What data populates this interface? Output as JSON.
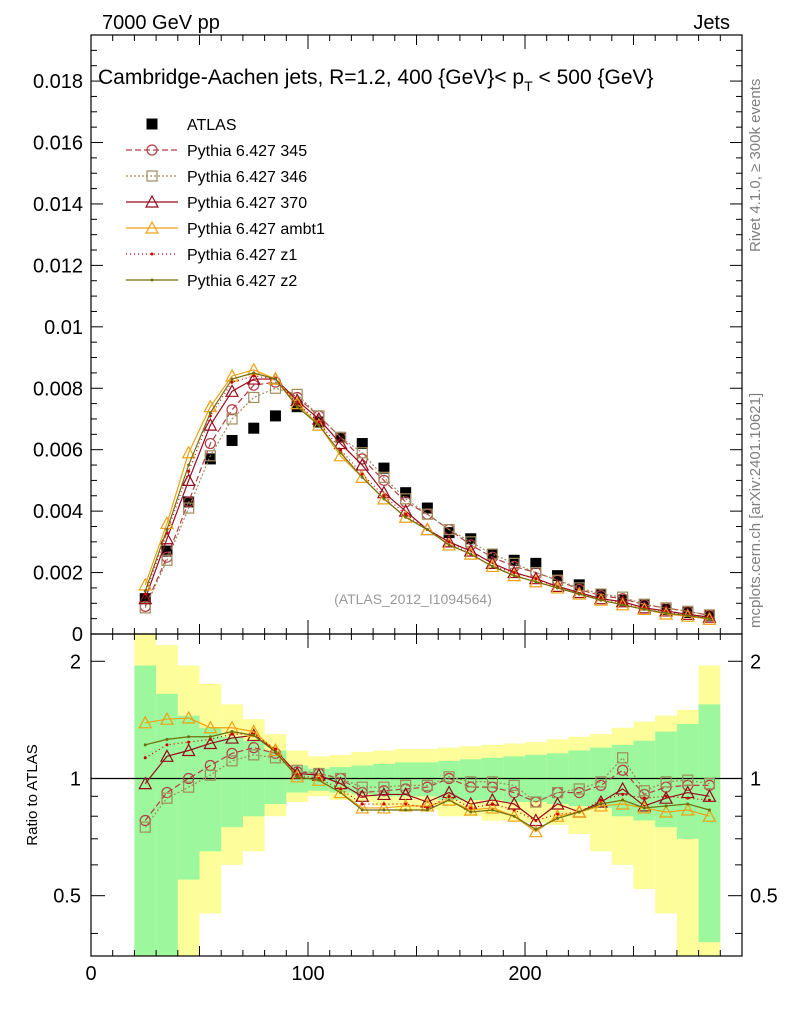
{
  "header": {
    "left": "7000 GeV pp",
    "right": "Jets"
  },
  "side_labels": {
    "rivet": "Rivet 4.1.0, ≥ 300k events",
    "mcplots": "mcplots.cern.ch [arXiv:2401.10621]"
  },
  "watermark": "(ATLAS_2012_I1094564)",
  "colors": {
    "data": "#000000",
    "p345": "#b43c46",
    "p346": "#a08c5a",
    "p370": "#960a1e",
    "ambt1": "#f0a014",
    "z1": "#c80000",
    "z2": "#6e6e0a",
    "band_inner": "#9df89d",
    "band_outer": "#fdfd99"
  },
  "chart_data": [
    {
      "type": "line",
      "title": "Cambridge-Aachen jets, R=1.2, 400 {GeV}< p_T < 500 {GeV}",
      "title_main": "Cambridge-Aachen jets, R=1.2, 400 {GeV}< p",
      "title_sub": "T",
      "title_end": " < 500 {GeV}",
      "xlim": [
        0,
        300
      ],
      "ylim": [
        0,
        0.0195
      ],
      "yticks": [
        "0",
        "0.002",
        "0.004",
        "0.006",
        "0.008",
        "0.01",
        "0.012",
        "0.014",
        "0.016",
        "0.018"
      ],
      "x": [
        25,
        35,
        45,
        55,
        65,
        75,
        85,
        95,
        105,
        115,
        125,
        135,
        145,
        155,
        165,
        175,
        185,
        195,
        205,
        215,
        225,
        235,
        245,
        255,
        265,
        275,
        285
      ],
      "series": [
        {
          "name": "ATLAS",
          "key": "data",
          "marker": "square",
          "dash": "",
          "values": [
            0.00115,
            0.0027,
            0.0043,
            0.0057,
            0.0063,
            0.0067,
            0.0071,
            0.0074,
            0.0069,
            0.0064,
            0.0062,
            0.0054,
            0.0046,
            0.0041,
            0.0033,
            0.0031,
            0.0026,
            0.0024,
            0.0023,
            0.0019,
            0.0016,
            0.0013,
            0.0011,
            0.00095,
            0.0008,
            0.0007,
            0.0006
          ]
        },
        {
          "name": "Pythia 6.427 345",
          "key": "p345",
          "marker": "circle",
          "dash": "6,3",
          "values": [
            0.0009,
            0.0025,
            0.0043,
            0.0062,
            0.0073,
            0.0081,
            0.0082,
            0.0077,
            0.0071,
            0.0064,
            0.0057,
            0.005,
            0.0043,
            0.0039,
            0.0034,
            0.0029,
            0.0025,
            0.0022,
            0.002,
            0.00175,
            0.00145,
            0.00125,
            0.00115,
            0.00095,
            0.00085,
            0.00073,
            0.00061
          ]
        },
        {
          "name": "Pythia 6.427 346",
          "key": "p346",
          "marker": "square-open",
          "dash": "2,2",
          "values": [
            0.00085,
            0.0024,
            0.0041,
            0.0058,
            0.007,
            0.0077,
            0.008,
            0.0078,
            0.0071,
            0.0064,
            0.0059,
            0.0051,
            0.0044,
            0.0039,
            0.0034,
            0.003,
            0.0026,
            0.0023,
            0.002,
            0.00175,
            0.0015,
            0.0013,
            0.0012,
            0.00097,
            0.00085,
            0.00074,
            0.00062
          ]
        },
        {
          "name": "Pythia 6.427 370",
          "key": "p370",
          "marker": "triangle",
          "dash": "",
          "values": [
            0.00115,
            0.0031,
            0.005,
            0.0068,
            0.0079,
            0.0083,
            0.0083,
            0.0076,
            0.007,
            0.0062,
            0.0055,
            0.0046,
            0.004,
            0.0034,
            0.003,
            0.0027,
            0.0023,
            0.002,
            0.0018,
            0.00155,
            0.00135,
            0.00115,
            0.00105,
            0.00085,
            0.00075,
            0.00064,
            0.00055
          ]
        },
        {
          "name": "Pythia 6.427 ambt1",
          "key": "ambt1",
          "marker": "triangle",
          "dash": "",
          "values": [
            0.0016,
            0.0036,
            0.0059,
            0.0074,
            0.0084,
            0.0086,
            0.0083,
            0.0075,
            0.0068,
            0.0058,
            0.0051,
            0.0044,
            0.0038,
            0.0034,
            0.0029,
            0.0026,
            0.0022,
            0.0019,
            0.0017,
            0.0015,
            0.0013,
            0.0011,
            0.00095,
            0.0008,
            0.00065,
            0.00058,
            0.00048
          ]
        },
        {
          "name": "Pythia 6.427 z1",
          "key": "z1",
          "marker": "dot",
          "dash": "1,3",
          "values": [
            0.0013,
            0.0033,
            0.0053,
            0.0071,
            0.0082,
            0.0084,
            0.0083,
            0.0075,
            0.0069,
            0.006,
            0.0052,
            0.0045,
            0.0039,
            0.0034,
            0.003,
            0.0026,
            0.0022,
            0.002,
            0.0018,
            0.0015,
            0.0013,
            0.00115,
            0.001,
            0.00085,
            0.00072,
            0.00062,
            0.00053
          ]
        },
        {
          "name": "Pythia 6.427 z2",
          "key": "z2",
          "marker": "dot",
          "dash": "",
          "values": [
            0.0014,
            0.0034,
            0.0055,
            0.0072,
            0.0083,
            0.0085,
            0.0083,
            0.0074,
            0.0068,
            0.0059,
            0.0051,
            0.0044,
            0.0038,
            0.0034,
            0.0029,
            0.0026,
            0.0022,
            0.0019,
            0.0017,
            0.0015,
            0.0013,
            0.0011,
            0.00095,
            0.0008,
            0.00068,
            0.0006,
            0.0005
          ]
        }
      ]
    },
    {
      "type": "line",
      "ylabel": "Ratio to ATLAS",
      "xlim": [
        0,
        300
      ],
      "ylim": [
        0.35,
        2.35
      ],
      "yticks": [
        "0.5",
        "1",
        "2"
      ],
      "xticks": [
        "0",
        "100",
        "200"
      ],
      "band_edges": [
        20,
        30,
        40,
        50,
        60,
        70,
        80,
        90,
        100,
        110,
        120,
        130,
        140,
        150,
        160,
        170,
        180,
        190,
        200,
        210,
        220,
        230,
        240,
        250,
        260,
        270,
        280,
        290
      ],
      "band_inner": [
        [
          0.35,
          1.95
        ],
        [
          0.35,
          1.65
        ],
        [
          0.55,
          1.45
        ],
        [
          0.65,
          1.35
        ],
        [
          0.75,
          1.28
        ],
        [
          0.8,
          1.25
        ],
        [
          0.86,
          1.18
        ],
        [
          0.92,
          1.08
        ],
        [
          0.93,
          1.06
        ],
        [
          0.92,
          1.07
        ],
        [
          0.91,
          1.08
        ],
        [
          0.9,
          1.09
        ],
        [
          0.9,
          1.1
        ],
        [
          0.9,
          1.1
        ],
        [
          0.88,
          1.11
        ],
        [
          0.88,
          1.12
        ],
        [
          0.88,
          1.13
        ],
        [
          0.87,
          1.14
        ],
        [
          0.87,
          1.15
        ],
        [
          0.86,
          1.16
        ],
        [
          0.85,
          1.18
        ],
        [
          0.84,
          1.2
        ],
        [
          0.8,
          1.22
        ],
        [
          0.78,
          1.25
        ],
        [
          0.75,
          1.32
        ],
        [
          0.7,
          1.38
        ],
        [
          0.38,
          1.55
        ]
      ],
      "band_outer": [
        [
          0.35,
          2.35
        ],
        [
          0.35,
          2.2
        ],
        [
          0.35,
          1.95
        ],
        [
          0.45,
          1.75
        ],
        [
          0.6,
          1.55
        ],
        [
          0.65,
          1.42
        ],
        [
          0.8,
          1.3
        ],
        [
          0.87,
          1.18
        ],
        [
          0.9,
          1.14
        ],
        [
          0.88,
          1.15
        ],
        [
          0.87,
          1.17
        ],
        [
          0.85,
          1.18
        ],
        [
          0.83,
          1.19
        ],
        [
          0.83,
          1.19
        ],
        [
          0.8,
          1.2
        ],
        [
          0.8,
          1.21
        ],
        [
          0.78,
          1.22
        ],
        [
          0.78,
          1.23
        ],
        [
          0.77,
          1.24
        ],
        [
          0.76,
          1.26
        ],
        [
          0.72,
          1.28
        ],
        [
          0.65,
          1.3
        ],
        [
          0.6,
          1.35
        ],
        [
          0.52,
          1.4
        ],
        [
          0.45,
          1.45
        ],
        [
          0.35,
          1.5
        ],
        [
          0.35,
          1.95
        ]
      ],
      "series": [
        {
          "name": "Pythia 6.427 345",
          "key": "p345",
          "marker": "circle",
          "dash": "6,3",
          "values": [
            0.78,
            0.92,
            1.0,
            1.08,
            1.16,
            1.2,
            1.16,
            1.04,
            1.03,
            1.0,
            0.92,
            0.93,
            0.94,
            0.95,
            1.0,
            0.95,
            0.95,
            0.92,
            0.87,
            0.92,
            0.92,
            0.96,
            1.05,
            0.91,
            0.95,
            0.96,
            0.96
          ]
        },
        {
          "name": "Pythia 6.427 346",
          "key": "p346",
          "marker": "square-open",
          "dash": "2,2",
          "values": [
            0.75,
            0.89,
            0.95,
            1.02,
            1.11,
            1.15,
            1.13,
            1.05,
            1.03,
            1.0,
            0.95,
            0.95,
            0.96,
            0.96,
            1.01,
            0.98,
            0.98,
            0.96,
            0.87,
            0.92,
            0.94,
            0.98,
            1.13,
            0.93,
            0.98,
            0.99,
            0.97
          ]
        },
        {
          "name": "Pythia 6.427 370",
          "key": "p370",
          "marker": "triangle",
          "dash": "",
          "values": [
            0.97,
            1.14,
            1.18,
            1.23,
            1.27,
            1.29,
            1.18,
            1.03,
            1.02,
            0.97,
            0.9,
            0.91,
            0.91,
            0.87,
            0.92,
            0.86,
            0.88,
            0.86,
            0.78,
            0.86,
            0.82,
            0.87,
            0.94,
            0.85,
            0.89,
            0.92,
            0.9
          ]
        },
        {
          "name": "Pythia 6.427 ambt1",
          "key": "ambt1",
          "marker": "triangle",
          "dash": "",
          "values": [
            1.39,
            1.42,
            1.43,
            1.35,
            1.35,
            1.32,
            1.18,
            1.01,
            0.99,
            0.92,
            0.84,
            0.84,
            0.85,
            0.85,
            0.88,
            0.83,
            0.84,
            0.8,
            0.73,
            0.8,
            0.82,
            0.85,
            0.86,
            0.84,
            0.82,
            0.83,
            0.8
          ]
        },
        {
          "name": "Pythia 6.427 z1",
          "key": "z1",
          "marker": "dot",
          "dash": "1,3",
          "values": [
            1.13,
            1.22,
            1.24,
            1.26,
            1.3,
            1.3,
            1.19,
            1.02,
            1.0,
            0.94,
            0.86,
            0.86,
            0.86,
            0.84,
            0.9,
            0.84,
            0.86,
            0.83,
            0.78,
            0.81,
            0.82,
            0.88,
            0.91,
            0.89,
            0.9,
            0.89,
            0.88
          ]
        },
        {
          "name": "Pythia 6.427 z2",
          "key": "z2",
          "marker": "dot",
          "dash": "",
          "values": [
            1.22,
            1.26,
            1.28,
            1.28,
            1.32,
            1.29,
            1.17,
            1.01,
            0.99,
            0.92,
            0.83,
            0.83,
            0.83,
            0.83,
            0.88,
            0.82,
            0.83,
            0.8,
            0.74,
            0.79,
            0.82,
            0.86,
            0.88,
            0.84,
            0.85,
            0.86,
            0.83
          ]
        }
      ]
    }
  ]
}
